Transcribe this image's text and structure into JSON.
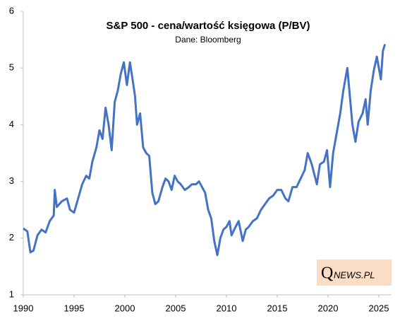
{
  "chart_data": {
    "type": "line",
    "title": "S&P 500 - cena/wartość księgowa (P/BV)",
    "subtitle": "Dane: Bloomberg",
    "watermark": {
      "initial": "Q",
      "rest": "NEWS.PL"
    },
    "xlim": [
      1990,
      2025
    ],
    "xticks": [
      1990,
      1995,
      2000,
      2005,
      2010,
      2015,
      2020,
      2025
    ],
    "ylim": [
      1,
      6
    ],
    "yticks": [
      1,
      2,
      3,
      4,
      5,
      6
    ],
    "series": [
      {
        "color": "#4472c4",
        "x": [
          1990.0,
          1990.4,
          1990.7,
          1991.0,
          1991.4,
          1991.8,
          1992.2,
          1992.6,
          1993.0,
          1993.1,
          1993.3,
          1993.8,
          1994.3,
          1994.6,
          1995.0,
          1995.4,
          1995.8,
          1996.2,
          1996.5,
          1996.8,
          1997.2,
          1997.5,
          1997.8,
          1998.1,
          1998.4,
          1998.7,
          1999.0,
          1999.3,
          1999.6,
          1999.9,
          2000.2,
          2000.5,
          2000.8,
          2001.0,
          2001.2,
          2001.5,
          2001.8,
          2002.1,
          2002.4,
          2002.7,
          2003.0,
          2003.3,
          2003.7,
          2004.0,
          2004.3,
          2004.6,
          2004.9,
          2005.2,
          2005.5,
          2005.9,
          2006.3,
          2006.6,
          2007.0,
          2007.3,
          2007.6,
          2007.9,
          2008.2,
          2008.5,
          2008.8,
          2009.1,
          2009.4,
          2009.7,
          2010.0,
          2010.3,
          2010.5,
          2010.9,
          2011.2,
          2011.6,
          2011.9,
          2012.2,
          2012.6,
          2013.0,
          2013.4,
          2013.8,
          2014.2,
          2014.6,
          2015.0,
          2015.4,
          2015.8,
          2016.1,
          2016.5,
          2016.9,
          2017.3,
          2017.7,
          2018.0,
          2018.4,
          2018.9,
          2019.2,
          2019.6,
          2019.9,
          2020.2,
          2020.5,
          2020.8,
          2021.2,
          2021.5,
          2021.9,
          2022.1,
          2022.4,
          2022.7,
          2023.0,
          2023.4,
          2023.7,
          2023.9,
          2024.2,
          2024.5,
          2024.8,
          2025.0,
          2025.2,
          2025.4,
          2025.6
        ],
        "values": [
          2.17,
          2.12,
          1.75,
          1.78,
          2.05,
          2.15,
          2.1,
          2.3,
          2.4,
          2.85,
          2.55,
          2.65,
          2.7,
          2.5,
          2.45,
          2.7,
          2.95,
          3.1,
          3.05,
          3.35,
          3.6,
          3.9,
          3.75,
          4.3,
          4.0,
          3.55,
          4.4,
          4.6,
          4.9,
          5.1,
          4.7,
          5.1,
          4.75,
          4.5,
          4.0,
          4.2,
          3.6,
          3.5,
          3.45,
          2.8,
          2.6,
          2.65,
          2.9,
          3.05,
          3.0,
          2.85,
          3.1,
          3.0,
          2.95,
          2.85,
          2.9,
          2.95,
          2.95,
          3.0,
          2.9,
          2.8,
          2.5,
          2.35,
          1.95,
          1.7,
          2.0,
          2.15,
          2.2,
          2.3,
          2.05,
          2.2,
          2.3,
          1.95,
          2.15,
          2.2,
          2.3,
          2.35,
          2.5,
          2.6,
          2.7,
          2.75,
          2.85,
          2.85,
          2.7,
          2.65,
          2.9,
          2.9,
          3.05,
          3.2,
          3.5,
          3.3,
          2.95,
          3.3,
          3.35,
          3.55,
          2.9,
          3.5,
          3.8,
          4.2,
          4.6,
          5.0,
          4.6,
          4.0,
          3.7,
          4.05,
          4.2,
          4.45,
          4.0,
          4.6,
          4.95,
          5.2,
          5.0,
          4.8,
          5.3,
          5.42
        ]
      }
    ]
  }
}
